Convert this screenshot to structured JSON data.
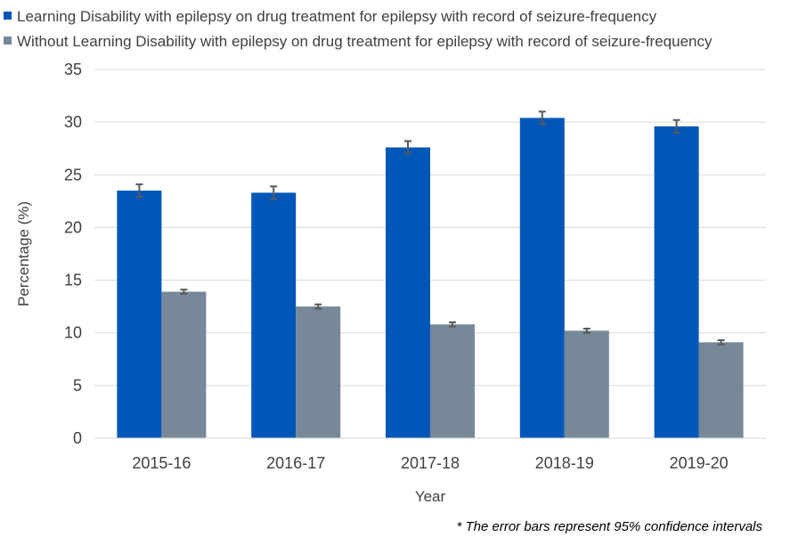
{
  "chart_data": {
    "type": "bar",
    "categories": [
      "2015-16",
      "2016-17",
      "2017-18",
      "2018-19",
      "2019-20"
    ],
    "series": [
      {
        "name": "Learning Disability with epilepsy on drug treatment for epilepsy with record of seizure-frequency",
        "color": "#0057b8",
        "values": [
          23.5,
          23.3,
          27.6,
          30.4,
          29.6
        ],
        "error_low": [
          22.9,
          22.7,
          27.0,
          29.8,
          29.0
        ],
        "error_high": [
          24.1,
          23.9,
          28.2,
          31.0,
          30.2
        ]
      },
      {
        "name": "Without Learning Disability with epilepsy on drug treatment for epilepsy with record of seizure-frequency",
        "color": "#778899",
        "values": [
          13.9,
          12.5,
          10.8,
          10.2,
          9.1
        ],
        "error_low": [
          13.7,
          12.3,
          10.6,
          10.0,
          8.9
        ],
        "error_high": [
          14.1,
          12.7,
          11.0,
          10.4,
          9.3
        ]
      }
    ],
    "xlabel": "Year",
    "ylabel": "Percentage (%)",
    "ylim": [
      0,
      35
    ],
    "yticks": [
      "0",
      "5",
      "10",
      "15",
      "20",
      "25",
      "30",
      "35"
    ],
    "grid": true,
    "legend_position": "top-left",
    "footnote": "* The error bars represent 95%  confidence intervals"
  }
}
